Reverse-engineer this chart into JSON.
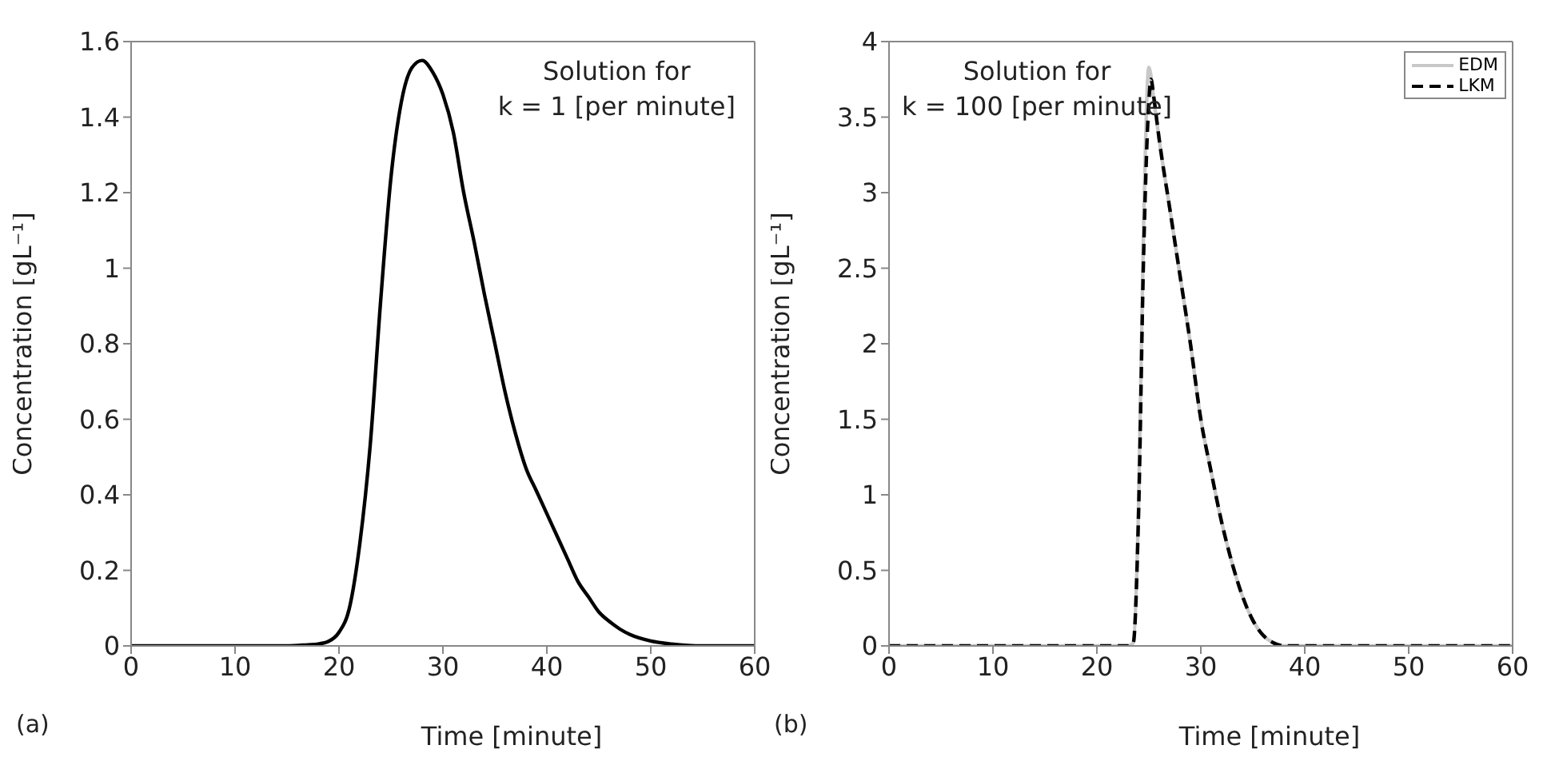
{
  "chart_data": [
    {
      "type": "line",
      "xlabel": "Time [minute]",
      "ylabel": "Concentration [gL⁻¹]",
      "annotations": [
        "Solution for\nk = 1 [per minute]",
        "(a)"
      ],
      "xlim": [
        0,
        60
      ],
      "xticks": [
        0,
        10,
        20,
        30,
        40,
        50,
        60
      ],
      "ylim": [
        0,
        1.6
      ],
      "yticks": [
        0,
        0.2,
        0.4,
        0.6,
        0.8,
        1,
        1.2,
        1.4,
        1.6
      ],
      "legend": false,
      "marker": "none",
      "series": [
        {
          "color": "#000000",
          "line_style": "solid",
          "x": [
            0,
            5,
            10,
            15,
            17,
            18,
            19,
            20,
            21,
            22,
            23,
            24,
            25,
            26,
            27,
            28,
            29,
            30,
            31,
            32,
            33,
            34,
            35,
            36,
            37,
            38,
            39,
            40,
            41,
            42,
            43,
            44,
            45,
            46,
            47,
            48,
            50,
            52,
            55,
            60
          ],
          "values": [
            0,
            0,
            0,
            0,
            0.003,
            0.005,
            0.012,
            0.036,
            0.1,
            0.27,
            0.53,
            0.91,
            1.24,
            1.44,
            1.53,
            1.55,
            1.52,
            1.46,
            1.36,
            1.2,
            1.07,
            0.93,
            0.8,
            0.67,
            0.56,
            0.47,
            0.41,
            0.35,
            0.29,
            0.23,
            0.17,
            0.13,
            0.09,
            0.065,
            0.045,
            0.03,
            0.013,
            0.005,
            0,
            0
          ]
        }
      ]
    },
    {
      "type": "line",
      "xlabel": "Time [minute]",
      "ylabel": "Concentration [gL⁻¹]",
      "annotations": [
        "Solution for\nk = 100 [per minute]",
        "(b)"
      ],
      "xlim": [
        0,
        60
      ],
      "xticks": [
        0,
        10,
        20,
        30,
        40,
        50,
        60
      ],
      "ylim": [
        0,
        4
      ],
      "yticks": [
        0,
        0.5,
        1,
        1.5,
        2,
        2.5,
        3,
        3.5,
        4
      ],
      "legend": "top right",
      "marker": "none",
      "series": [
        {
          "name": "EDM",
          "color": "#c8c8c8",
          "line_style": "solid",
          "x": [
            0,
            10,
            20,
            23,
            23.5,
            24,
            24.5,
            25,
            25.5,
            26,
            27,
            28,
            29,
            30,
            31,
            32,
            33,
            34,
            35,
            36,
            37,
            38,
            40,
            50,
            60
          ],
          "values": [
            0,
            0,
            0,
            0,
            0.02,
            0.9,
            2.8,
            3.83,
            3.6,
            3.35,
            2.9,
            2.45,
            2,
            1.5,
            1.15,
            0.82,
            0.55,
            0.33,
            0.17,
            0.07,
            0.02,
            0,
            0,
            0,
            0
          ]
        },
        {
          "name": "LKM",
          "color": "#000000",
          "line_style": "dashed",
          "x": [
            0,
            10,
            20,
            23,
            23.5,
            24,
            24.5,
            25,
            25.2,
            25.5,
            26,
            27,
            28,
            29,
            30,
            31,
            32,
            33,
            34,
            35,
            36,
            37,
            38,
            40,
            50,
            60
          ],
          "values": [
            0,
            0,
            0,
            0,
            0.02,
            0.85,
            2.6,
            3.6,
            3.75,
            3.62,
            3.35,
            2.9,
            2.45,
            2,
            1.5,
            1.15,
            0.82,
            0.55,
            0.33,
            0.17,
            0.07,
            0.02,
            0,
            0,
            0,
            0
          ]
        }
      ]
    }
  ]
}
